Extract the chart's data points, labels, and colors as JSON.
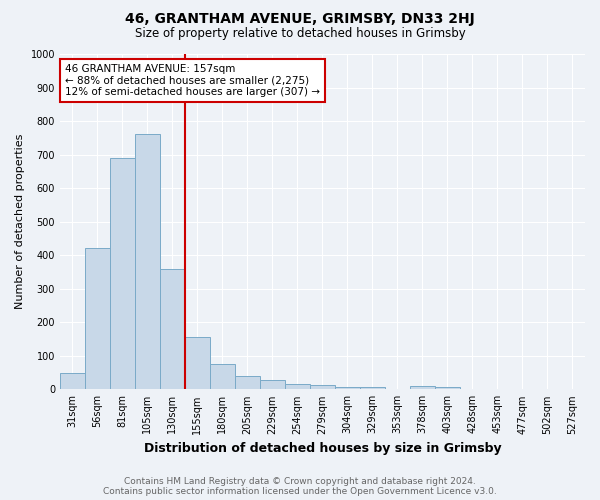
{
  "title": "46, GRANTHAM AVENUE, GRIMSBY, DN33 2HJ",
  "subtitle": "Size of property relative to detached houses in Grimsby",
  "xlabel": "Distribution of detached houses by size in Grimsby",
  "ylabel": "Number of detached properties",
  "footnote1": "Contains HM Land Registry data © Crown copyright and database right 2024.",
  "footnote2": "Contains public sector information licensed under the Open Government Licence v3.0.",
  "bar_labels": [
    "31sqm",
    "56sqm",
    "81sqm",
    "105sqm",
    "130sqm",
    "155sqm",
    "180sqm",
    "205sqm",
    "229sqm",
    "254sqm",
    "279sqm",
    "304sqm",
    "329sqm",
    "353sqm",
    "378sqm",
    "403sqm",
    "428sqm",
    "453sqm",
    "477sqm",
    "502sqm",
    "527sqm"
  ],
  "bar_values": [
    50,
    420,
    690,
    760,
    360,
    155,
    75,
    40,
    28,
    15,
    12,
    8,
    8,
    0,
    10,
    8,
    0,
    0,
    0,
    0,
    0
  ],
  "bar_color": "#c8d8e8",
  "bar_edge_color": "#7aaac8",
  "bar_edge_width": 0.7,
  "vline_x": 4.5,
  "vline_color": "#cc0000",
  "annotation_text": "46 GRANTHAM AVENUE: 157sqm\n← 88% of detached houses are smaller (2,275)\n12% of semi-detached houses are larger (307) →",
  "annotation_box_color": "#ffffff",
  "annotation_box_edge": "#cc0000",
  "annotation_fontsize": 7.5,
  "ylim": [
    0,
    1000
  ],
  "yticks": [
    0,
    100,
    200,
    300,
    400,
    500,
    600,
    700,
    800,
    900,
    1000
  ],
  "title_fontsize": 10,
  "subtitle_fontsize": 8.5,
  "xlabel_fontsize": 9,
  "ylabel_fontsize": 8,
  "tick_fontsize": 7,
  "footnote_fontsize": 6.5,
  "background_color": "#eef2f7",
  "grid_color": "#ffffff",
  "fig_width": 6.0,
  "fig_height": 5.0,
  "dpi": 100
}
